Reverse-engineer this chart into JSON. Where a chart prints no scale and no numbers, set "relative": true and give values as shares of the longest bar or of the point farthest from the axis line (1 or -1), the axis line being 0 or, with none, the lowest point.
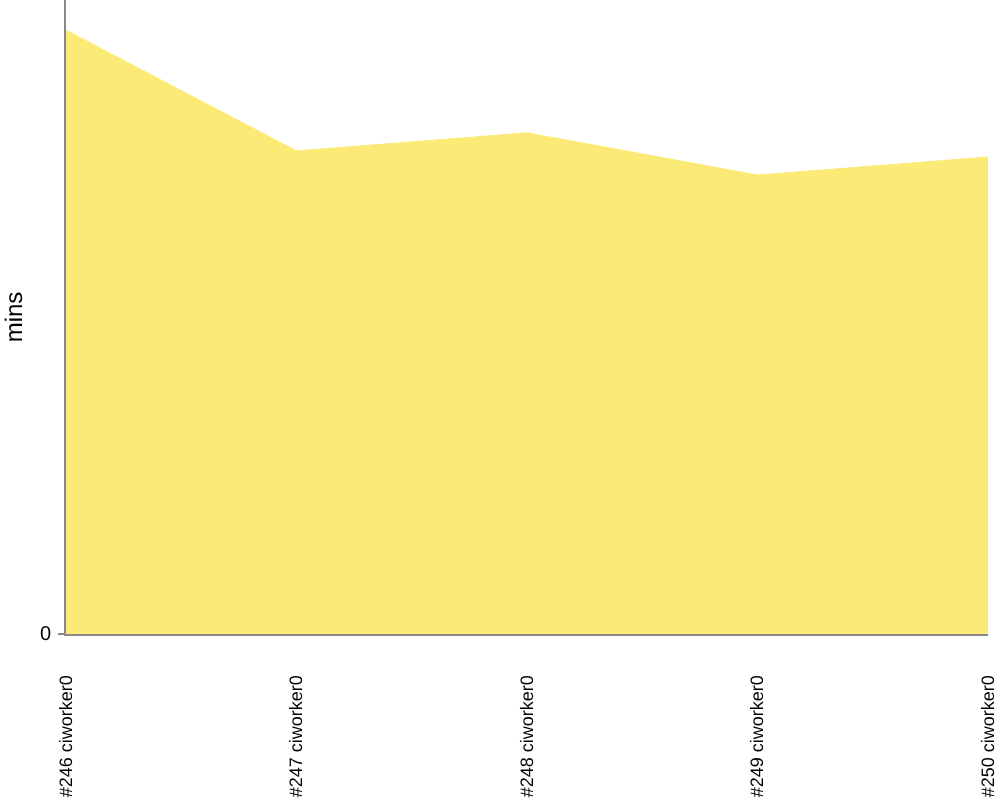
{
  "chart_data": {
    "type": "area",
    "ylabel": "mins",
    "relative": true,
    "categories": [
      "#246 ciworker0",
      "#247 ciworker0",
      "#248 ciworker0",
      "#249 ciworker0",
      "#250 ciworker0"
    ],
    "values": [
      1,
      0.8,
      0.83,
      0.76,
      0.79
    ],
    "color": "#fcea76",
    "annotations": [
      "0"
    ],
    "legend": false
  }
}
